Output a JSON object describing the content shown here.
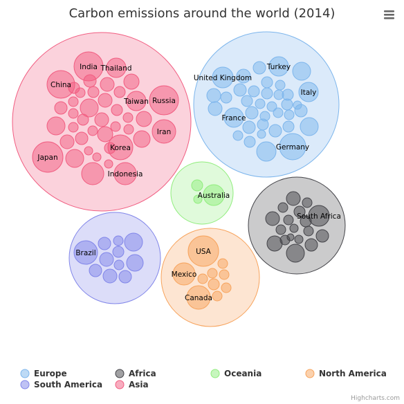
{
  "chart_data": {
    "type": "packed-bubble",
    "title": "Carbon emissions around the world (2014)",
    "series": [
      {
        "name": "Europe",
        "color": "#7cb5ec",
        "labeled": [
          "United Kingdom",
          "Turkey",
          "Italy",
          "France",
          "Germany"
        ]
      },
      {
        "name": "Africa",
        "color": "#434348",
        "labeled": [
          "South Africa"
        ]
      },
      {
        "name": "Oceania",
        "color": "#90ed7d",
        "labeled": [
          "Australia"
        ]
      },
      {
        "name": "North America",
        "color": "#f7a35c",
        "labeled": [
          "USA",
          "Mexico",
          "Canada"
        ]
      },
      {
        "name": "South America",
        "color": "#8085e9",
        "labeled": [
          "Brazil"
        ]
      },
      {
        "name": "Asia",
        "color": "#f15c80",
        "labeled": [
          "India",
          "Thailand",
          "China",
          "Taiwan",
          "Russia",
          "Iran",
          "Korea",
          "Japan",
          "Indonesia"
        ]
      }
    ],
    "legend_position": "bottom"
  },
  "credits": "Highcharts.com",
  "menu_icon": "hamburger-menu-icon"
}
